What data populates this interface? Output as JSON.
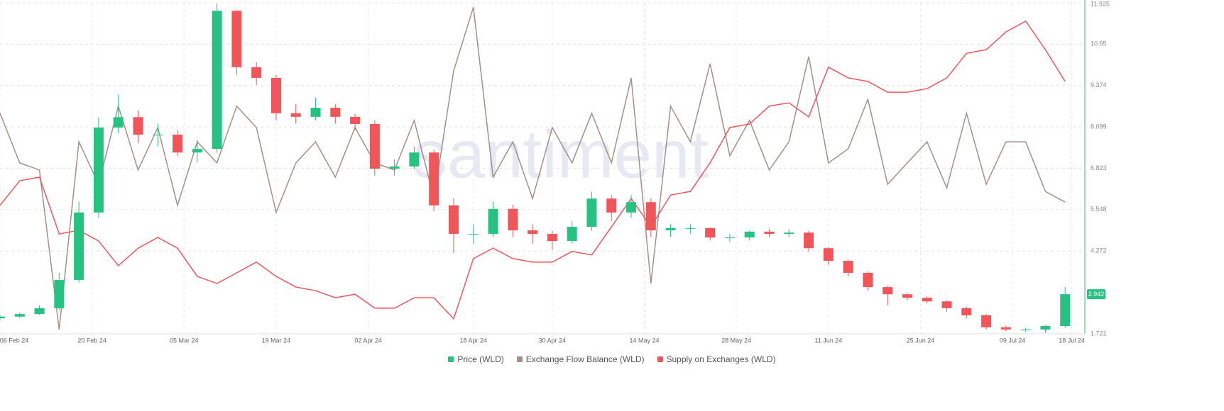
{
  "chart_data": {
    "type": "candlestick",
    "watermark": "santiment",
    "current_price": 2.942,
    "xlim": [
      0,
      165
    ],
    "xticks": [
      {
        "value": 0,
        "label": "06 Feb 24"
      },
      {
        "value": 14,
        "label": "20 Feb 24"
      },
      {
        "value": 28,
        "label": "05 Mar 24"
      },
      {
        "value": 42,
        "label": "19 Mar 24"
      },
      {
        "value": 56,
        "label": "02 Apr 24"
      },
      {
        "value": 72,
        "label": "18 Apr 24"
      },
      {
        "value": 84,
        "label": "30 Apr 24"
      },
      {
        "value": 98,
        "label": "14 May 24"
      },
      {
        "value": 112,
        "label": "28 May 24"
      },
      {
        "value": 126,
        "label": "11 Jun 24"
      },
      {
        "value": 140,
        "label": "25 Jun 24"
      },
      {
        "value": 154,
        "label": "09 Jul 24"
      },
      {
        "value": 163,
        "label": "18 Jul 24"
      }
    ],
    "ylim": [
      1.721,
      11.925
    ],
    "yticks": [
      1.721,
      4.272,
      5.548,
      6.823,
      8.099,
      9.374,
      10.65,
      11.925
    ],
    "grid": true,
    "axis_color": "#2ecc71",
    "x": [
      0,
      3,
      6,
      9,
      12,
      15,
      18,
      21,
      24,
      27,
      30,
      33,
      36,
      39,
      42,
      45,
      48,
      51,
      54,
      57,
      60,
      63,
      66,
      69,
      72,
      75,
      78,
      81,
      84,
      87,
      90,
      93,
      96,
      99,
      102,
      105,
      108,
      111,
      114,
      117,
      120,
      123,
      126,
      129,
      132,
      135,
      138,
      141,
      144,
      147,
      150,
      153,
      156,
      159,
      162
    ],
    "series": [
      {
        "name": "Price (WLD)",
        "type": "candlestick",
        "color": "#26c281",
        "up_color": "#26c281",
        "down_color": "#f0555a",
        "open": [
          2.2,
          2.25,
          2.33,
          2.51,
          3.38,
          5.46,
          8.08,
          8.4,
          7.86,
          7.86,
          7.31,
          7.42,
          11.68,
          9.94,
          9.61,
          8.52,
          8.41,
          8.69,
          8.41,
          8.19,
          6.81,
          6.88,
          7.31,
          5.68,
          4.8,
          4.8,
          5.57,
          4.91,
          4.8,
          4.58,
          5.02,
          5.89,
          5.46,
          5.78,
          4.91,
          4.98,
          4.98,
          4.69,
          4.69,
          4.87,
          4.8,
          4.84,
          4.36,
          3.97,
          3.6,
          3.16,
          2.94,
          2.83,
          2.72,
          2.51,
          2.29,
          1.92,
          1.85,
          1.85,
          1.96
        ],
        "high": [
          2.3,
          2.38,
          2.6,
          3.6,
          5.8,
          8.4,
          9.1,
          8.6,
          8.2,
          8.0,
          7.7,
          11.9,
          11.7,
          10.1,
          9.7,
          8.8,
          9.0,
          8.8,
          8.5,
          8.3,
          7.1,
          7.5,
          7.4,
          5.9,
          5.1,
          5.8,
          5.7,
          5.1,
          4.9,
          5.2,
          6.1,
          6.0,
          6.0,
          5.9,
          5.1,
          5.1,
          5.0,
          4.8,
          4.9,
          4.95,
          4.95,
          4.9,
          4.4,
          4.0,
          3.65,
          3.2,
          2.98,
          2.87,
          2.76,
          2.55,
          2.33,
          1.97,
          1.9,
          1.99,
          3.16
        ],
        "low": [
          2.15,
          2.2,
          2.3,
          2.45,
          3.3,
          5.3,
          7.9,
          7.6,
          7.5,
          7.2,
          7.0,
          7.3,
          9.7,
          9.4,
          8.3,
          8.2,
          8.3,
          8.2,
          8.0,
          6.6,
          6.6,
          6.8,
          5.5,
          4.2,
          4.5,
          4.7,
          4.7,
          4.5,
          4.3,
          4.5,
          4.9,
          5.2,
          5.3,
          4.7,
          4.7,
          4.8,
          4.6,
          4.55,
          4.6,
          4.7,
          4.7,
          4.25,
          3.85,
          3.5,
          3.05,
          2.6,
          2.75,
          2.65,
          2.4,
          2.2,
          1.85,
          1.8,
          1.78,
          1.75,
          1.9
        ],
        "close": [
          2.25,
          2.33,
          2.51,
          3.38,
          5.46,
          8.08,
          8.4,
          7.86,
          7.86,
          7.31,
          7.42,
          11.68,
          9.94,
          9.61,
          8.52,
          8.41,
          8.69,
          8.41,
          8.19,
          6.81,
          6.88,
          7.31,
          5.68,
          4.8,
          4.8,
          5.57,
          4.91,
          4.8,
          4.58,
          5.02,
          5.89,
          5.46,
          5.78,
          4.91,
          4.98,
          4.98,
          4.69,
          4.69,
          4.87,
          4.8,
          4.84,
          4.36,
          3.97,
          3.6,
          3.16,
          2.94,
          2.83,
          2.72,
          2.51,
          2.29,
          1.92,
          1.85,
          1.85,
          1.96,
          2.942
        ]
      },
      {
        "name": "Exchange Flow Balance (WLD)",
        "type": "line",
        "color": "#a58f86",
        "values": [
          8.52,
          6.99,
          6.77,
          1.85,
          7.64,
          6.33,
          8.74,
          6.77,
          8.08,
          5.68,
          7.64,
          6.99,
          8.74,
          8.08,
          5.46,
          6.99,
          7.64,
          6.55,
          8.08,
          6.99,
          6.77,
          8.3,
          5.89,
          9.83,
          11.79,
          6.55,
          7.64,
          5.89,
          8.08,
          6.99,
          8.52,
          6.99,
          9.61,
          3.27,
          8.74,
          7.64,
          10.05,
          7.21,
          8.3,
          6.77,
          7.64,
          10.27,
          6.99,
          7.42,
          8.95,
          6.33,
          6.99,
          7.64,
          6.22,
          8.52,
          6.33,
          7.64,
          7.64,
          6.11,
          5.78
        ]
      },
      {
        "name": "Supply on Exchanges (WLD)",
        "type": "line",
        "color": "#f2555a",
        "values": [
          5.68,
          6.44,
          6.55,
          4.8,
          4.91,
          4.58,
          3.82,
          4.36,
          4.69,
          4.36,
          3.49,
          3.27,
          3.6,
          3.93,
          3.49,
          3.16,
          3.05,
          2.83,
          2.94,
          2.51,
          2.51,
          2.83,
          2.83,
          2.18,
          4.04,
          4.36,
          4.04,
          3.93,
          3.93,
          4.26,
          4.15,
          5.02,
          5.89,
          5.02,
          6.0,
          6.11,
          6.99,
          8.08,
          8.19,
          8.74,
          8.84,
          8.41,
          9.94,
          9.61,
          9.5,
          9.17,
          9.17,
          9.28,
          9.61,
          10.37,
          10.48,
          11.03,
          11.36,
          10.48,
          9.5
        ]
      }
    ]
  }
}
